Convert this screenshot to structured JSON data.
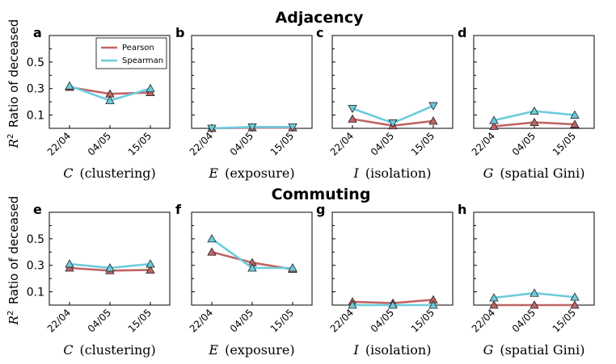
{
  "colors": {
    "pearson": "#c06464",
    "spearman": "#6ccbdc",
    "marker_edge": "#222222"
  },
  "sections": [
    {
      "title": "Adjacency"
    },
    {
      "title": "Commuting"
    }
  ],
  "legend": [
    "Pearson",
    "Spearman"
  ],
  "shared": {
    "ylabel_prefix": "R",
    "ylabel_sup": "2",
    "ylabel_text": "Ratio of deceased",
    "ytick_labels": [
      "0.5",
      "0.3",
      "0.1"
    ],
    "xtick_labels": [
      "22/04",
      "04/05",
      "15/05"
    ]
  },
  "chart_data": [
    {
      "type": "line",
      "panel": "a",
      "title": "",
      "x": [
        "22/04",
        "04/05",
        "15/05"
      ],
      "ylim": [
        0,
        0.7
      ],
      "xlabel_sym": "C",
      "xlabel_text": "(clustering)",
      "series": [
        {
          "name": "Pearson",
          "values": [
            0.31,
            0.26,
            0.27
          ]
        },
        {
          "name": "Spearman",
          "values": [
            0.32,
            0.21,
            0.3
          ]
        }
      ]
    },
    {
      "type": "line",
      "panel": "b",
      "title": "",
      "x": [
        "22/04",
        "04/05",
        "15/05"
      ],
      "ylim": [
        0,
        0.7
      ],
      "xlabel_sym": "E",
      "xlabel_text": "(exposure)",
      "series": [
        {
          "name": "Pearson",
          "values": [
            0.0,
            0.005,
            0.005
          ]
        },
        {
          "name": "Spearman",
          "values": [
            0.0,
            0.01,
            0.01
          ]
        }
      ]
    },
    {
      "type": "line",
      "panel": "c",
      "title": "",
      "x": [
        "22/04",
        "04/05",
        "15/05"
      ],
      "ylim": [
        0,
        0.7
      ],
      "xlabel_sym": "I",
      "xlabel_text": "(isolation)",
      "series": [
        {
          "name": "Pearson",
          "values": [
            0.07,
            0.02,
            0.055
          ]
        },
        {
          "name": "Spearman",
          "values": [
            0.15,
            0.04,
            0.17
          ]
        }
      ]
    },
    {
      "type": "line",
      "panel": "d",
      "title": "",
      "x": [
        "22/04",
        "04/05",
        "15/05"
      ],
      "ylim": [
        0,
        0.7
      ],
      "xlabel_sym": "G",
      "xlabel_text": "(spatial Gini)",
      "series": [
        {
          "name": "Pearson",
          "values": [
            0.015,
            0.045,
            0.03
          ]
        },
        {
          "name": "Spearman",
          "values": [
            0.06,
            0.13,
            0.1
          ]
        }
      ]
    },
    {
      "type": "line",
      "panel": "e",
      "title": "",
      "x": [
        "22/04",
        "04/05",
        "15/05"
      ],
      "ylim": [
        0,
        0.7
      ],
      "xlabel_sym": "C",
      "xlabel_text": "(clustering)",
      "series": [
        {
          "name": "Pearson",
          "values": [
            0.28,
            0.26,
            0.265
          ]
        },
        {
          "name": "Spearman",
          "values": [
            0.31,
            0.28,
            0.31
          ]
        }
      ]
    },
    {
      "type": "line",
      "panel": "f",
      "title": "",
      "x": [
        "22/04",
        "04/05",
        "15/05"
      ],
      "ylim": [
        0,
        0.7
      ],
      "xlabel_sym": "E",
      "xlabel_text": "(exposure)",
      "series": [
        {
          "name": "Pearson",
          "values": [
            0.4,
            0.32,
            0.27
          ]
        },
        {
          "name": "Spearman",
          "values": [
            0.5,
            0.28,
            0.28
          ]
        }
      ]
    },
    {
      "type": "line",
      "panel": "g",
      "title": "",
      "x": [
        "22/04",
        "04/05",
        "15/05"
      ],
      "ylim": [
        0,
        0.7
      ],
      "xlabel_sym": "I",
      "xlabel_text": "(isolation)",
      "series": [
        {
          "name": "Pearson",
          "values": [
            0.025,
            0.015,
            0.04
          ]
        },
        {
          "name": "Spearman",
          "values": [
            0.0,
            0.0,
            0.0
          ]
        }
      ]
    },
    {
      "type": "line",
      "panel": "h",
      "title": "",
      "x": [
        "22/04",
        "04/05",
        "15/05"
      ],
      "ylim": [
        0,
        0.7
      ],
      "xlabel_sym": "G",
      "xlabel_text": "(spatial Gini)",
      "series": [
        {
          "name": "Pearson",
          "values": [
            0.0,
            0.0,
            0.0
          ]
        },
        {
          "name": "Spearman",
          "values": [
            0.055,
            0.09,
            0.06
          ]
        }
      ]
    }
  ]
}
